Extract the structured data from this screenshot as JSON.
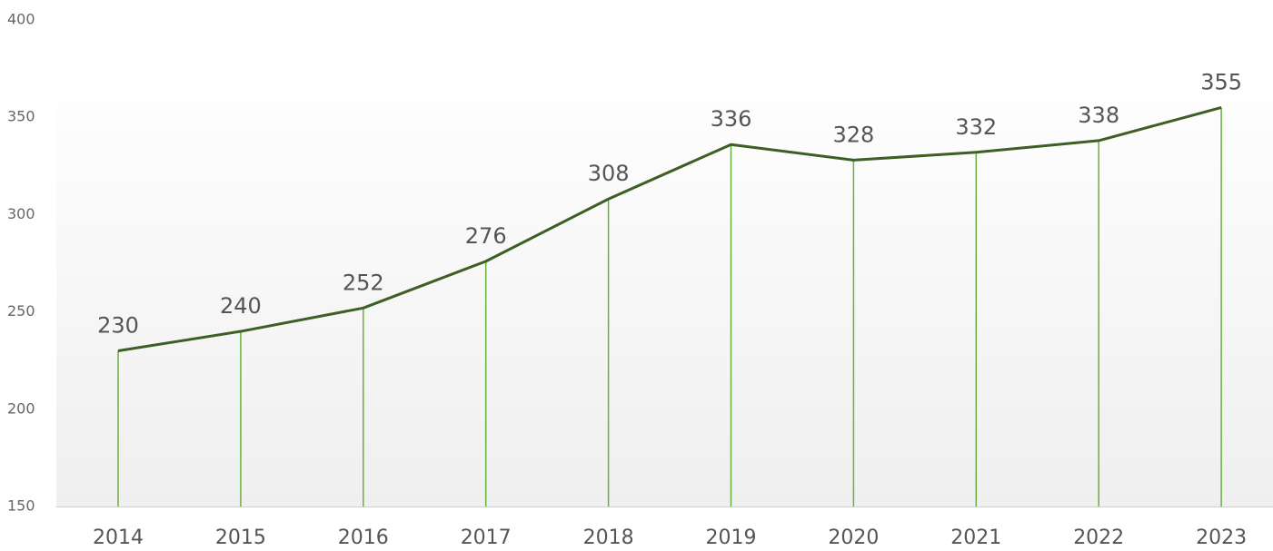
{
  "chart_data": {
    "type": "line",
    "categories": [
      "2014",
      "2015",
      "2016",
      "2017",
      "2018",
      "2019",
      "2020",
      "2021",
      "2022",
      "2023"
    ],
    "values": [
      230,
      240,
      252,
      276,
      308,
      336,
      328,
      332,
      338,
      355
    ],
    "color": "#3d5e24",
    "drop_line_color": "#6aaf3c",
    "ylim": [
      150,
      400
    ],
    "yticks": [
      150,
      200,
      250,
      300,
      350,
      400
    ]
  }
}
